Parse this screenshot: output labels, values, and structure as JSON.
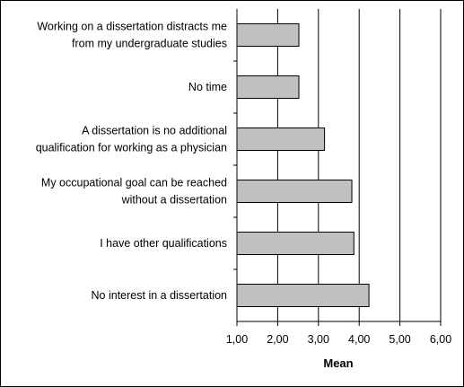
{
  "chart_data": {
    "type": "bar",
    "orientation": "horizontal",
    "title": "",
    "xlabel": "Mean",
    "ylabel": "",
    "xlim": [
      1,
      6
    ],
    "xticks": [
      "1,00",
      "2,00",
      "3,00",
      "4,00",
      "5,00",
      "6,00"
    ],
    "grid": true,
    "bar_color": "#c0c0c0",
    "categories": [
      [
        "Working on a dissertation distracts me",
        "from my undergraduate studies"
      ],
      [
        "No time"
      ],
      [
        "A dissertation is no additional",
        "qualification for working as a physician"
      ],
      [
        "My occupational goal can be reached",
        "without a dissertation"
      ],
      [
        "I have other qualifications"
      ],
      [
        "No interest in a dissertation"
      ]
    ],
    "values": [
      2.52,
      2.52,
      3.15,
      3.82,
      3.87,
      4.24
    ]
  }
}
